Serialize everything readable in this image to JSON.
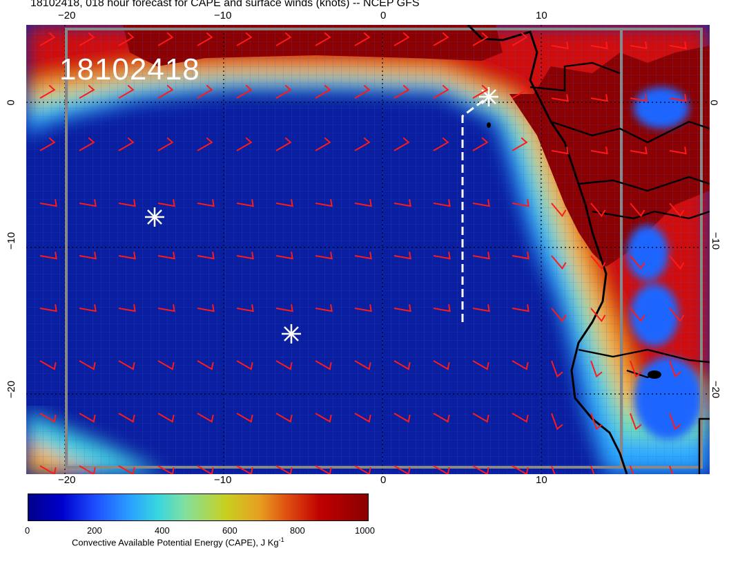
{
  "title": "18102418, 018 hour forecast for CAPE and surface winds (knots) -- NCEP GFS",
  "stamp": "18102418",
  "axes": {
    "top": [
      "−20",
      "−10",
      "0",
      "10"
    ],
    "bottom": [
      "−20",
      "−10",
      "0",
      "10"
    ],
    "left": [
      "0",
      "−10",
      "−20"
    ],
    "right": [
      "0",
      "−10",
      "−20"
    ]
  },
  "colorbar": {
    "labels": [
      "0",
      "200",
      "400",
      "600",
      "800",
      "1000"
    ],
    "caption": "Convective Available Potential Energy (CAPE), J Kg",
    "caption_sup": "-1"
  },
  "colors": {
    "ocean_low": "#0a1ea0",
    "cape_high": "#8b0000",
    "barb": "#ff1a1a",
    "marker": "#ffffff"
  },
  "markers": [
    "asterisk",
    "asterisk",
    "asterisk"
  ]
}
